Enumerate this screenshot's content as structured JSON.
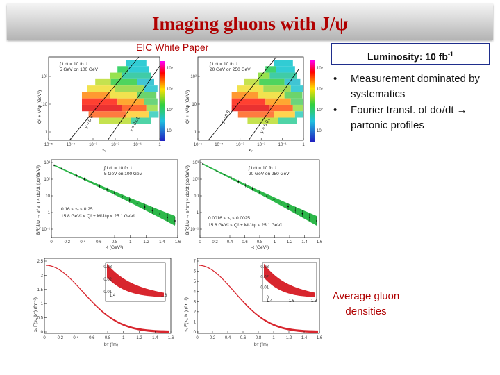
{
  "slide": {
    "title": "Imaging gluons with J/ψ",
    "subtitle": "EIC White Paper",
    "luminosity": {
      "text": "Luminosity: 10 fb",
      "exp": "-1"
    },
    "bullets": [
      "Measurement dominated by systematics",
      "Fourier transf. of dσ/dt → partonic profiles"
    ],
    "bullet_marker": "•",
    "average_label": "Average gluon densities"
  },
  "plots": {
    "kinematic": {
      "left": {
        "lumi": "∫ Ldt = 10 fb⁻¹",
        "energies": "5 GeV on 100 GeV"
      },
      "right": {
        "lumi": "∫ Ldt = 10 fb⁻¹",
        "energies": "20 GeV on 250 GeV"
      },
      "ylabel": "Q² + M²ψ (GeV²)",
      "xlabel": "xᵥ",
      "line_labels": [
        "y = 0.6",
        "y = 0.01"
      ],
      "x_ticks": [
        "10⁻⁵",
        "10⁻⁴",
        "10⁻³",
        "10⁻²",
        "10⁻¹",
        "1"
      ],
      "y_ticks": [
        "10²",
        "10",
        "1"
      ],
      "z_ticks": [
        "10⁴",
        "10³",
        "10²",
        "10"
      ]
    },
    "cross_section": {
      "left": {
        "lumi": "∫ Ldt = 10 fb⁻¹",
        "energies": "5 GeV on 100 GeV",
        "x_range": "0.16 < xᵥ < 0.25",
        "q_range": "15.8 GeV² < Q² + M²J/ψ < 25.1 GeV²"
      },
      "right": {
        "lumi": "∫ Ldt = 10 fb⁻¹",
        "energies": "20 GeV on 250 GeV",
        "x_range": "0.0016 < xᵥ < 0.0025",
        "q_range": "15.8 GeV² < Q² + M²J/ψ < 25.1 GeV²"
      },
      "ylabel": "BR(J/ψ → e⁺e⁻) × dσ/dt (pb/GeV²)",
      "xlabel": "-t (GeV²)",
      "x_ticks": [
        "0",
        "0.2",
        "0.4",
        "0.6",
        "0.8",
        "1",
        "1.2",
        "1.4",
        "1.6"
      ],
      "y_ticks": [
        "10³",
        "10²",
        "10",
        "1",
        "10⁻¹"
      ]
    },
    "profiles": {
      "ylabel": "xᵥ F(xᵥ, bᴛ) (fm⁻²)",
      "xlabel": "bᴛ (fm)",
      "x_ticks": [
        "0",
        "0.2",
        "0.4",
        "0.6",
        "0.8",
        "1",
        "1.2",
        "1.4",
        "1.6"
      ],
      "left": {
        "y_ticks": [
          "2.5",
          "2",
          "1.5",
          "1",
          "0.5",
          "0"
        ],
        "inset_y_ticks": [
          "0.03",
          "0.02",
          "0.01"
        ],
        "inset_x_ticks": [
          "1.4",
          "1.6"
        ]
      },
      "right": {
        "y_ticks": [
          "7",
          "6",
          "5",
          "4",
          "3",
          "2",
          "1",
          "0"
        ],
        "inset_y_ticks": [
          "0.03",
          "0.02",
          "0.01",
          "0"
        ],
        "inset_x_ticks": [
          "1.4",
          "1.6",
          "1.8"
        ]
      }
    }
  },
  "colors": {
    "title": "#b00000",
    "box_border": "#1f2e8c",
    "band_green": "#2db84a",
    "band_red": "#d8262e"
  }
}
